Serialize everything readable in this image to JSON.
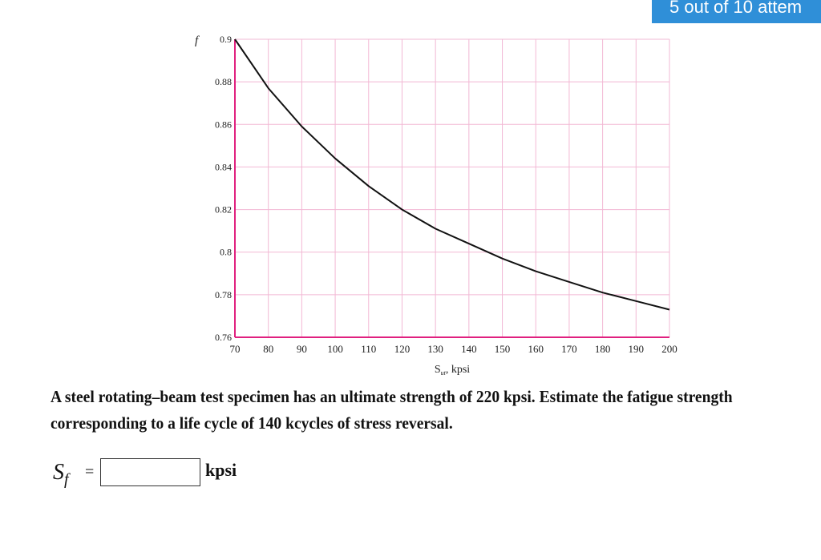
{
  "header": {
    "attempts_text": "5 out of 10 attem"
  },
  "chart_data": {
    "type": "line",
    "ylabel": "f",
    "xlabel_main": "S",
    "xlabel_sub": "ut",
    "xlabel_unit": ", kpsi",
    "xlim": [
      70,
      200
    ],
    "ylim": [
      0.76,
      0.9
    ],
    "x_ticks": [
      70,
      80,
      90,
      100,
      110,
      120,
      130,
      140,
      150,
      160,
      170,
      180,
      190,
      200
    ],
    "y_ticks": [
      {
        "value": 0.9,
        "label": "0.9"
      },
      {
        "value": 0.88,
        "label": "0.88"
      },
      {
        "value": 0.86,
        "label": "0.86"
      },
      {
        "value": 0.84,
        "label": "0.84"
      },
      {
        "value": 0.82,
        "label": "0.82"
      },
      {
        "value": 0.8,
        "label": "0.8"
      },
      {
        "value": 0.78,
        "label": "0.78"
      },
      {
        "value": 0.76,
        "label": "0.76"
      }
    ],
    "grid": true,
    "series": [
      {
        "x": [
          70,
          80,
          90,
          100,
          110,
          120,
          130,
          140,
          150,
          160,
          170,
          180,
          190,
          200
        ],
        "y": [
          0.9,
          0.877,
          0.859,
          0.844,
          0.831,
          0.82,
          0.811,
          0.804,
          0.797,
          0.791,
          0.786,
          0.781,
          0.777,
          0.773
        ]
      }
    ]
  },
  "question": {
    "text": "A steel rotating–beam test specimen has an ultimate strength of 220 kpsi. Estimate the fatigue strength corresponding to a life cycle of 140 kcycles of stress reversal."
  },
  "answer": {
    "label_main": "S",
    "label_sub": "f",
    "equals": "=",
    "value": "",
    "unit": "kpsi"
  },
  "colors": {
    "grid": "#f2b8d4",
    "axis": "#e0207f",
    "curve": "#111111",
    "badge": "#2f8fd8"
  }
}
